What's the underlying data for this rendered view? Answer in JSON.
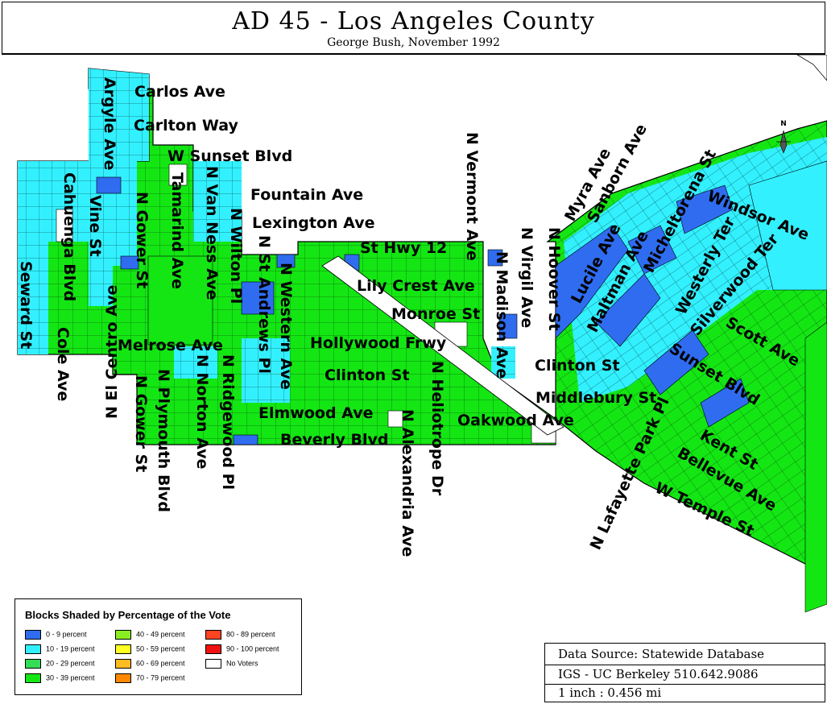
{
  "title": "AD 45 - Los Angeles County",
  "subtitle": "George Bush, November 1992",
  "north_label": "N",
  "streets": [
    {
      "text": "Carlos Ave"
    },
    {
      "text": "Carlton Way"
    },
    {
      "text": "W Sunset Blvd"
    },
    {
      "text": "Fountain Ave"
    },
    {
      "text": "Lexington Ave"
    },
    {
      "text": "St Hwy 12"
    },
    {
      "text": "Lily Crest Ave"
    },
    {
      "text": "Monroe St"
    },
    {
      "text": "Hollywood Frwy"
    },
    {
      "text": "Melrose Ave"
    },
    {
      "text": "Clinton St"
    },
    {
      "text": "Clinton St"
    },
    {
      "text": "Elmwood Ave"
    },
    {
      "text": "Beverly Blvd"
    },
    {
      "text": "Oakwood Ave"
    },
    {
      "text": "Middlebury St"
    },
    {
      "text": "Argyle Ave"
    },
    {
      "text": "Cahuenga Blvd"
    },
    {
      "text": "Vine St"
    },
    {
      "text": "Seward St"
    },
    {
      "text": "Cole Ave"
    },
    {
      "text": "N El Centro Ave"
    },
    {
      "text": "N Gower St"
    },
    {
      "text": "Tamarind Ave"
    },
    {
      "text": "N Van Ness Ave"
    },
    {
      "text": "N Wilton Pl"
    },
    {
      "text": "N St Andrews Pl"
    },
    {
      "text": "N Western Ave"
    },
    {
      "text": "N Gower St"
    },
    {
      "text": "N Plymouth Blvd"
    },
    {
      "text": "N Norton Ave"
    },
    {
      "text": "N Ridgewood Pl"
    },
    {
      "text": "N Alexandria Ave"
    },
    {
      "text": "N Heliotrope Dr"
    },
    {
      "text": "N Vermont Ave"
    },
    {
      "text": "N Madison Ave"
    },
    {
      "text": "N Virgil Ave"
    },
    {
      "text": "N Hoover St"
    },
    {
      "text": "Myra Ave"
    },
    {
      "text": "Sanborn Ave"
    },
    {
      "text": "Lucile Ave"
    },
    {
      "text": "Maltman Ave"
    },
    {
      "text": "Micheltorena St"
    },
    {
      "text": "Windsor Ave"
    },
    {
      "text": "Westerly Ter"
    },
    {
      "text": "Silverwood Ter"
    },
    {
      "text": "Scott Ave"
    },
    {
      "text": "Sunset Blvd"
    },
    {
      "text": "N Lafayette Park Pl"
    },
    {
      "text": "Kent St"
    },
    {
      "text": "Bellevue Ave"
    },
    {
      "text": "W Temple St"
    }
  ],
  "legend": {
    "title": "Blocks Shaded by Percentage of the Vote",
    "items": [
      {
        "label": "0 - 9 percent",
        "color": "#2f6cf0"
      },
      {
        "label": "10 - 19 percent",
        "color": "#33f0ff"
      },
      {
        "label": "20 - 29 percent",
        "color": "#33dd55"
      },
      {
        "label": "30 - 39 percent",
        "color": "#14e614"
      },
      {
        "label": "40 - 49 percent",
        "color": "#88ee22"
      },
      {
        "label": "50 - 59 percent",
        "color": "#ffff22"
      },
      {
        "label": "60 - 69 percent",
        "color": "#ffbb22"
      },
      {
        "label": "70 - 79 percent",
        "color": "#ff8800"
      },
      {
        "label": "80 - 89 percent",
        "color": "#ff4422"
      },
      {
        "label": "90 - 100 percent",
        "color": "#ee1111"
      },
      {
        "label": "No Voters",
        "color": "#ffffff"
      }
    ]
  },
  "source": {
    "line1": "Data Source: Statewide Database",
    "line2": "IGS - UC Berkeley 510.642.9086",
    "line3": "1 inch : 0.456 mi"
  }
}
